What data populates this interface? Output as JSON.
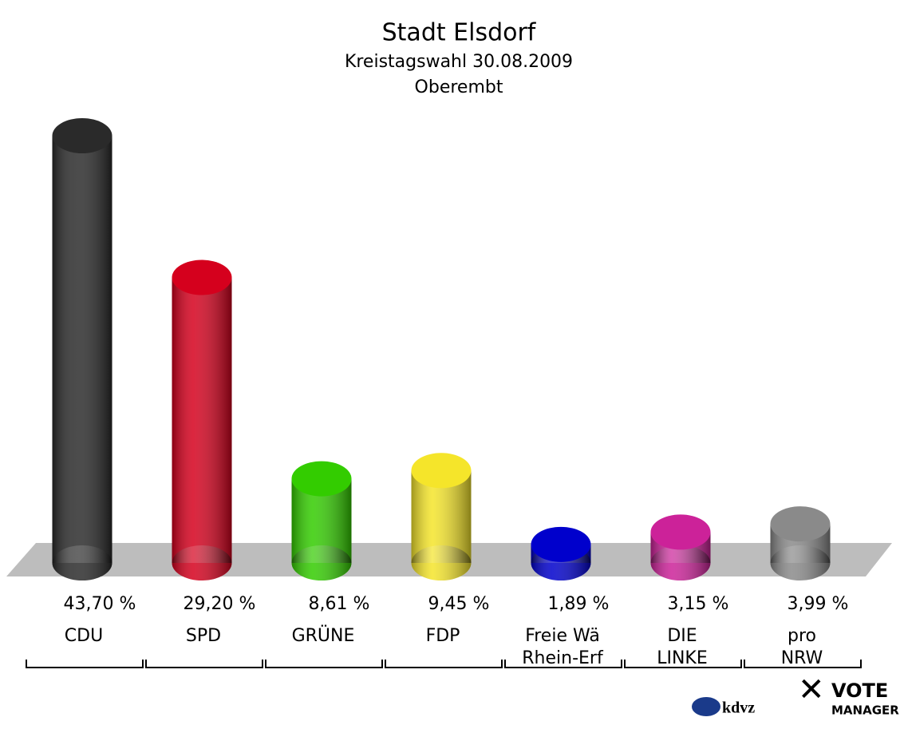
{
  "chart_data": {
    "type": "bar",
    "title": "Stadt Elsdorf",
    "subtitle": [
      "Kreistagswahl 30.08.2009",
      "Oberembt"
    ],
    "categories": [
      [
        "CDU"
      ],
      [
        "SPD"
      ],
      [
        "GRÜNE"
      ],
      [
        "FDP"
      ],
      [
        "Freie Wä",
        "Rhein-Erf"
      ],
      [
        "DIE",
        "LINKE"
      ],
      [
        "pro",
        "NRW"
      ]
    ],
    "values": [
      43.7,
      29.2,
      8.61,
      9.45,
      1.89,
      3.15,
      3.99
    ],
    "value_labels": [
      "43,70 %",
      "29,20 %",
      "8,61 %",
      "9,45 %",
      "1,89 %",
      "3,15 %",
      "3,99 %"
    ],
    "colors": [
      "#2a2a2a",
      "#d5001d",
      "#33cc00",
      "#f5e52a",
      "#0000cc",
      "#cc2299",
      "#8a8a8a"
    ],
    "logos": [
      "kdvz",
      "VOTE",
      "MANAGER"
    ]
  }
}
